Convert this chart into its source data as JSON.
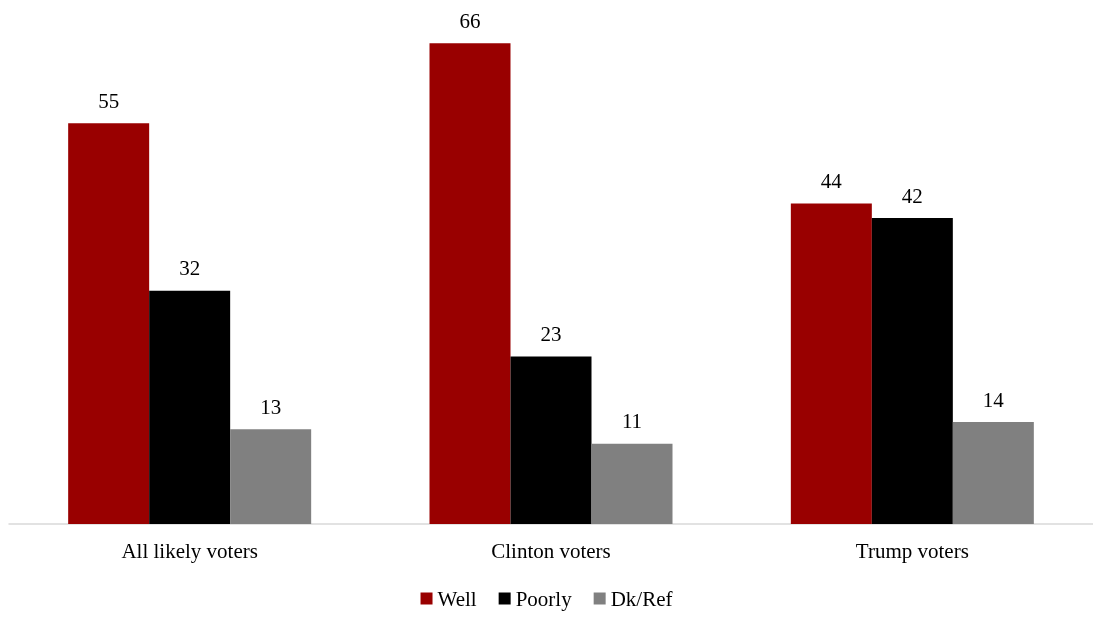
{
  "chart_data": {
    "type": "bar",
    "categories": [
      "All likely voters",
      "Clinton voters",
      "Trump voters"
    ],
    "series": [
      {
        "name": "Well",
        "color": "#990000",
        "values": [
          55,
          66,
          44
        ]
      },
      {
        "name": "Poorly",
        "color": "#000000",
        "values": [
          32,
          23,
          42
        ]
      },
      {
        "name": "Dk/Ref",
        "color": "#808080",
        "values": [
          13,
          11,
          14
        ]
      }
    ],
    "data_labels": true,
    "grid": false,
    "legend": "bottom",
    "tick_labels": "x"
  }
}
